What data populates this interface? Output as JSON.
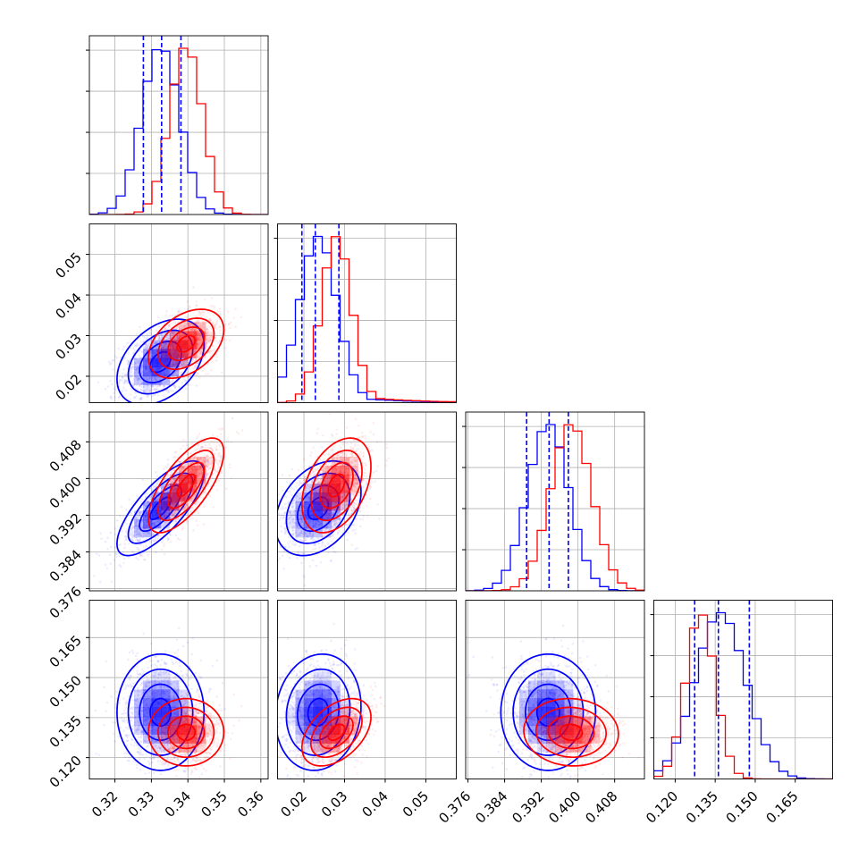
{
  "chart_data": {
    "type": "corner",
    "title": "",
    "parameters": [
      "",
      "",
      "",
      ""
    ],
    "ranges": [
      [
        0.313,
        0.362
      ],
      [
        0.0135,
        0.0575
      ],
      [
        0.3755,
        0.4145
      ],
      [
        0.112,
        0.179
      ]
    ],
    "ticks": [
      [
        0.32,
        0.33,
        0.34,
        0.35,
        0.36
      ],
      [
        0.02,
        0.03,
        0.04,
        0.05
      ],
      [
        0.376,
        0.384,
        0.392,
        0.4,
        0.408
      ],
      [
        0.12,
        0.135,
        0.15,
        0.165
      ]
    ],
    "tick_labels": [
      [
        "0.32",
        "0.33",
        "0.34",
        "0.35",
        "0.36"
      ],
      [
        "0.02",
        "0.03",
        "0.04",
        "0.05"
      ],
      [
        "0.376",
        "0.384",
        "0.392",
        "0.400",
        "0.408"
      ],
      [
        "0.120",
        "0.135",
        "0.150",
        "0.165"
      ]
    ],
    "grid": true,
    "legend": "none",
    "contour_levels": 4,
    "series": [
      {
        "color": "#0000ff",
        "means": [
          0.3325,
          0.0235,
          0.3935,
          0.137
        ],
        "sigmas": [
          0.0052,
          0.0046,
          0.0045,
          0.0095
        ],
        "correlations": {
          "0-1": 0.4,
          "0-2": 0.75,
          "0-3": 0.0,
          "1-2": 0.35,
          "1-3": 0.1,
          "2-3": 0.0
        },
        "quantiles": [
          [
            0.3278,
            0.3328,
            0.3381
          ],
          [
            0.0195,
            0.0228,
            0.0286
          ],
          [
            0.3888,
            0.3937,
            0.3979
          ],
          [
            0.1273,
            0.1362,
            0.1478
          ]
        ]
      },
      {
        "color": "#ff0000",
        "means": [
          0.3395,
          0.028,
          0.3985,
          0.1295
        ],
        "sigmas": [
          0.0045,
          0.0037,
          0.0045,
          0.0055
        ],
        "correlations": {
          "0-1": 0.4,
          "0-2": 0.7,
          "0-3": 0.0,
          "1-2": 0.4,
          "1-3": 0.45,
          "2-3": -0.05
        },
        "quantiles": []
      }
    ]
  }
}
